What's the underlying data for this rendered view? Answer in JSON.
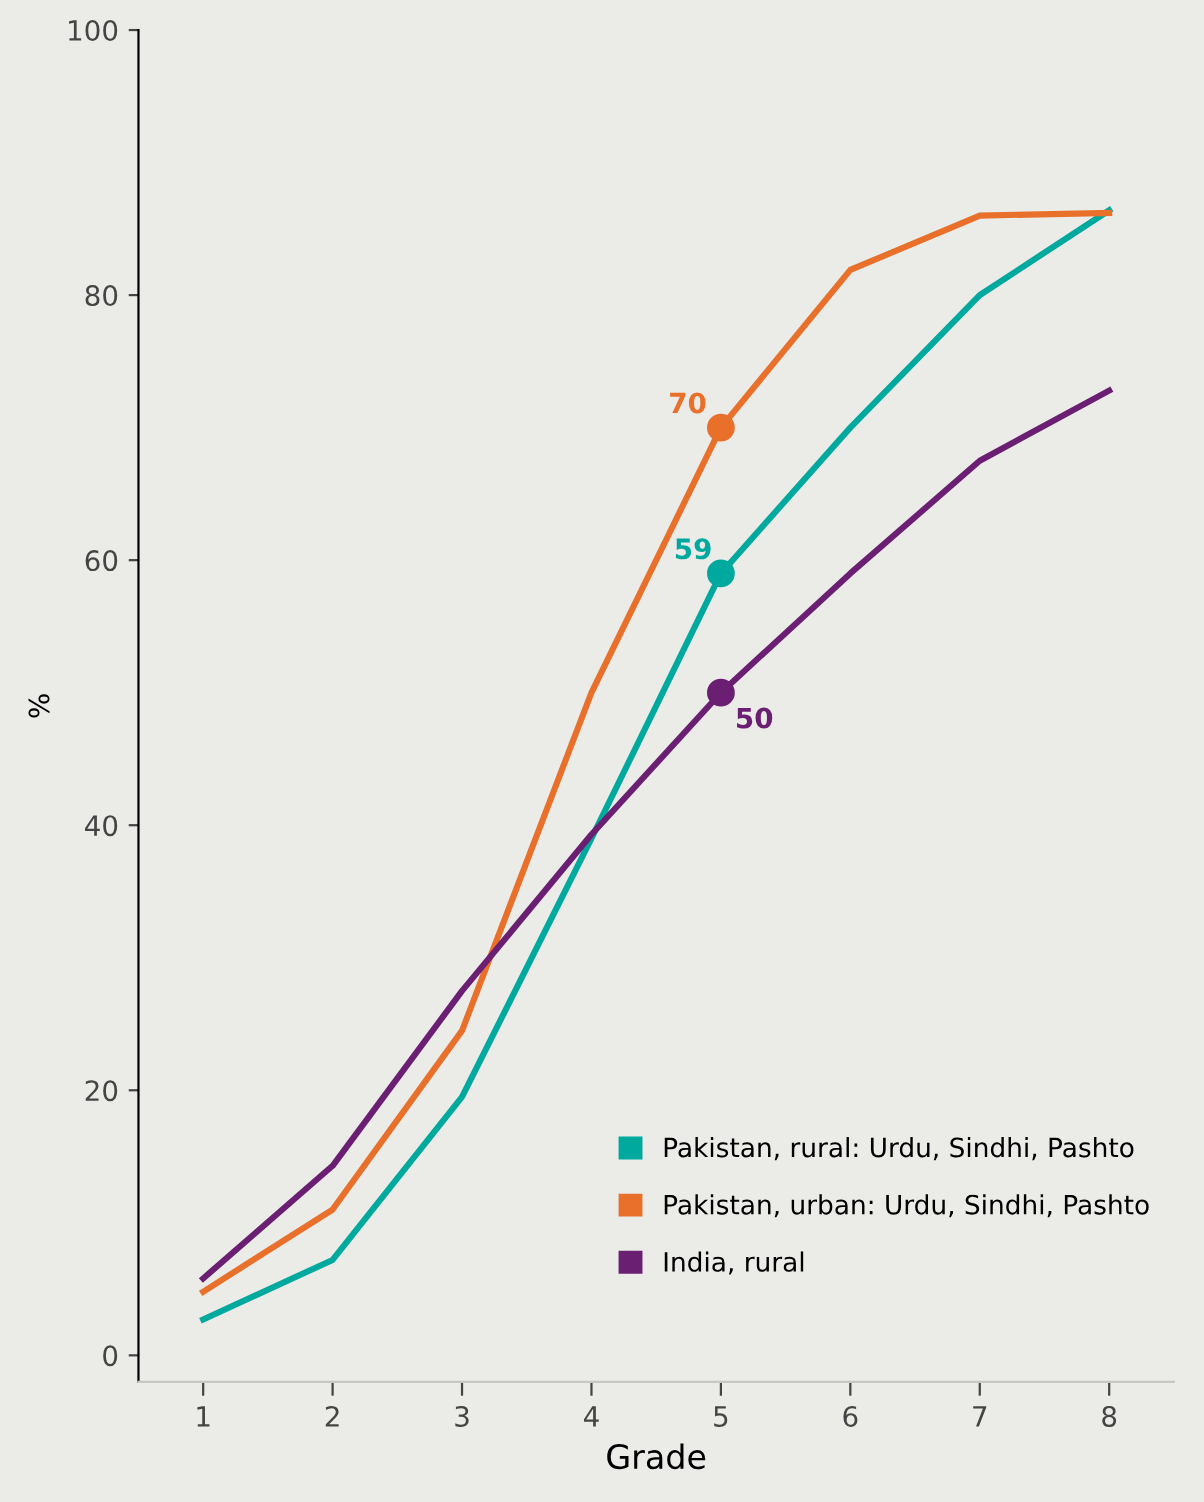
{
  "chart_data": {
    "type": "line",
    "xlabel": "Grade",
    "ylabel": "%",
    "x": [
      1,
      2,
      3,
      4,
      5,
      6,
      7,
      8
    ],
    "xlim": [
      0.5,
      8.5
    ],
    "xticks": [
      1,
      2,
      3,
      4,
      5,
      6,
      7,
      8
    ],
    "ylim": [
      -2,
      100
    ],
    "yticks": [
      0,
      20,
      40,
      60,
      80,
      100
    ],
    "grid": false,
    "legend": "bottom right",
    "series": [
      {
        "name": "Pakistan, rural: Urdu, Sindhi, Pashto",
        "color": "#00a99d",
        "values": [
          2.7,
          7.2,
          19.5,
          39,
          59,
          70,
          80,
          86.4
        ],
        "value_labels": [
          null,
          null,
          null,
          null,
          "59",
          null,
          null,
          null
        ]
      },
      {
        "name": "Pakistan, urban: Urdu, Sindhi, Pashto",
        "color": "#e8702a",
        "values": [
          4.8,
          11,
          24.5,
          50,
          70,
          81.9,
          86,
          86.2
        ],
        "value_labels": [
          null,
          null,
          null,
          null,
          "70",
          null,
          null,
          null
        ]
      },
      {
        "name": "India, rural",
        "color": "#6b1f72",
        "values": [
          5.8,
          14.3,
          27.5,
          39.3,
          50,
          59,
          67.5,
          72.8
        ],
        "value_labels": [
          null,
          null,
          null,
          null,
          "50",
          null,
          null,
          null
        ]
      }
    ]
  }
}
